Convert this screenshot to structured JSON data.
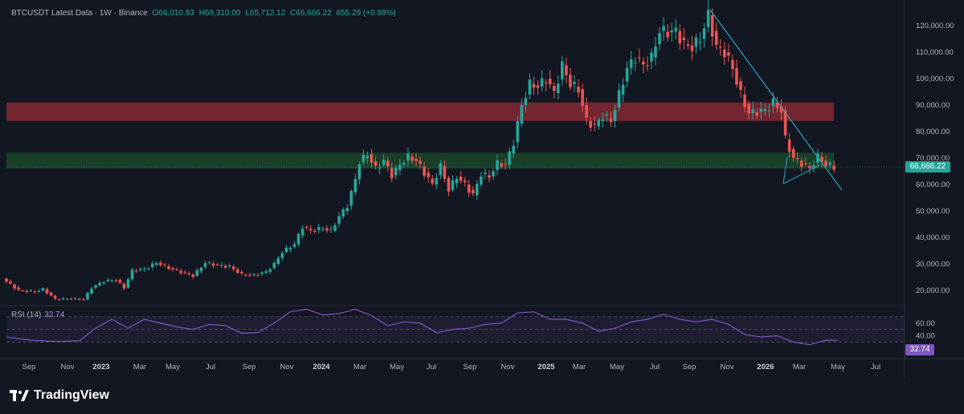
{
  "legend": {
    "symbol": "BTCUSDT Latest Data · 1W · Binance",
    "open": "O66,010.93",
    "high": "H69,310.00",
    "low": "L65,712.12",
    "close": "C66,666.22",
    "change": "655.29 (+0.99%)"
  },
  "rsi": {
    "label": "RSI (14)",
    "value": "32.74"
  },
  "price_badge": "66,666.22",
  "rsi_badge": "32.74",
  "brand": {
    "name": "TradingView"
  },
  "colors": {
    "up": "#26a69a",
    "down": "#ef5350",
    "rsi": "#7e57c2",
    "resistance_zone": "#8c2a34",
    "support_zone": "#1d4a2c",
    "trendline": "#26a6c2"
  },
  "chart_data": {
    "type": "candlestick",
    "symbol": "BTCUSDT",
    "interval": "1W",
    "exchange": "Binance",
    "y_axis_ticks": [
      "120,000.00",
      "110,000.00",
      "100,000.00",
      "90,000.00",
      "80,000.00",
      "70,000.00",
      "60,000.00",
      "50,000.00",
      "40,000.00",
      "30,000.00",
      "20,000.00"
    ],
    "y_axis_tick_values": [
      120000,
      110000,
      100000,
      90000,
      80000,
      70000,
      60000,
      50000,
      40000,
      30000,
      20000
    ],
    "x_axis_labels": [
      "Sep",
      "Nov",
      "2023",
      "Mar",
      "May",
      "Jul",
      "Sep",
      "Nov",
      "2024",
      "Mar",
      "May",
      "Jul",
      "Sep",
      "Nov",
      "2025",
      "Mar",
      "May",
      "Jul",
      "Sep",
      "Nov",
      "2026",
      "Mar",
      "May",
      "Jul"
    ],
    "zones": [
      {
        "name": "resistance",
        "from": 84000,
        "to": 91000
      },
      {
        "name": "support",
        "from": 66000,
        "to": 72000
      }
    ],
    "last_price": 66666.22,
    "weekly_closes": [
      {
        "t": 0,
        "v": 24500
      },
      {
        "t": 4,
        "v": 20000
      },
      {
        "t": 8,
        "v": 19500
      },
      {
        "t": 10,
        "v": 20500
      },
      {
        "t": 13,
        "v": 16700
      },
      {
        "t": 17,
        "v": 16900
      },
      {
        "t": 20,
        "v": 16600
      },
      {
        "t": 22,
        "v": 21000
      },
      {
        "t": 25,
        "v": 23500
      },
      {
        "t": 28,
        "v": 24000
      },
      {
        "t": 30,
        "v": 21000
      },
      {
        "t": 32,
        "v": 27500
      },
      {
        "t": 35,
        "v": 28000
      },
      {
        "t": 38,
        "v": 30500
      },
      {
        "t": 41,
        "v": 28500
      },
      {
        "t": 44,
        "v": 27000
      },
      {
        "t": 47,
        "v": 25500
      },
      {
        "t": 50,
        "v": 30500
      },
      {
        "t": 53,
        "v": 29500
      },
      {
        "t": 56,
        "v": 29000
      },
      {
        "t": 59,
        "v": 26000
      },
      {
        "t": 62,
        "v": 25800
      },
      {
        "t": 65,
        "v": 27000
      },
      {
        "t": 67,
        "v": 30000
      },
      {
        "t": 69,
        "v": 34500
      },
      {
        "t": 72,
        "v": 37500
      },
      {
        "t": 74,
        "v": 44000
      },
      {
        "t": 76,
        "v": 42500
      },
      {
        "t": 79,
        "v": 43500
      },
      {
        "t": 81,
        "v": 42500
      },
      {
        "t": 83,
        "v": 48000
      },
      {
        "t": 85,
        "v": 52000
      },
      {
        "t": 87,
        "v": 62000
      },
      {
        "t": 88,
        "v": 68500
      },
      {
        "t": 90,
        "v": 71500
      },
      {
        "t": 92,
        "v": 66000
      },
      {
        "t": 94,
        "v": 69000
      },
      {
        "t": 96,
        "v": 63500
      },
      {
        "t": 98,
        "v": 67500
      },
      {
        "t": 100,
        "v": 70500
      },
      {
        "t": 102,
        "v": 69000
      },
      {
        "t": 104,
        "v": 64500
      },
      {
        "t": 106,
        "v": 60000
      },
      {
        "t": 108,
        "v": 67000
      },
      {
        "t": 110,
        "v": 58000
      },
      {
        "t": 112,
        "v": 63000
      },
      {
        "t": 114,
        "v": 60000
      },
      {
        "t": 116,
        "v": 56000
      },
      {
        "t": 118,
        "v": 64000
      },
      {
        "t": 120,
        "v": 63000
      },
      {
        "t": 122,
        "v": 68000
      },
      {
        "t": 124,
        "v": 67500
      },
      {
        "t": 126,
        "v": 76000
      },
      {
        "t": 128,
        "v": 90000
      },
      {
        "t": 130,
        "v": 98000
      },
      {
        "t": 132,
        "v": 97000
      },
      {
        "t": 134,
        "v": 100000
      },
      {
        "t": 136,
        "v": 94500
      },
      {
        "t": 138,
        "v": 105000
      },
      {
        "t": 140,
        "v": 98000
      },
      {
        "t": 142,
        "v": 96000
      },
      {
        "t": 144,
        "v": 84000
      },
      {
        "t": 146,
        "v": 82000
      },
      {
        "t": 148,
        "v": 86000
      },
      {
        "t": 150,
        "v": 84000
      },
      {
        "t": 152,
        "v": 94000
      },
      {
        "t": 154,
        "v": 104000
      },
      {
        "t": 156,
        "v": 108000
      },
      {
        "t": 158,
        "v": 105000
      },
      {
        "t": 160,
        "v": 108000
      },
      {
        "t": 162,
        "v": 118000
      },
      {
        "t": 164,
        "v": 117500
      },
      {
        "t": 166,
        "v": 118000
      },
      {
        "t": 168,
        "v": 113000
      },
      {
        "t": 170,
        "v": 112000
      },
      {
        "t": 172,
        "v": 115000
      },
      {
        "t": 174,
        "v": 124000
      },
      {
        "t": 176,
        "v": 112000
      },
      {
        "t": 178,
        "v": 110000
      },
      {
        "t": 180,
        "v": 104000
      },
      {
        "t": 182,
        "v": 94000
      },
      {
        "t": 184,
        "v": 87000
      },
      {
        "t": 186,
        "v": 87500
      },
      {
        "t": 188,
        "v": 88000
      },
      {
        "t": 190,
        "v": 91000
      },
      {
        "t": 192,
        "v": 88000
      },
      {
        "t": 193,
        "v": 77000
      },
      {
        "t": 195,
        "v": 70000
      },
      {
        "t": 197,
        "v": 68000
      },
      {
        "t": 199,
        "v": 66000
      },
      {
        "t": 201,
        "v": 70500
      },
      {
        "t": 203,
        "v": 67500
      },
      {
        "t": 205,
        "v": 66666
      }
    ],
    "rsi_axis_ticks": [
      "60.00",
      "40.00"
    ],
    "rsi_axis_tick_values": [
      60,
      40
    ],
    "rsi_bands": [
      30,
      70
    ],
    "rsi_series": [
      {
        "t": 0,
        "v": 38
      },
      {
        "t": 6,
        "v": 33
      },
      {
        "t": 12,
        "v": 31
      },
      {
        "t": 18,
        "v": 32
      },
      {
        "t": 22,
        "v": 52
      },
      {
        "t": 26,
        "v": 66
      },
      {
        "t": 30,
        "v": 52
      },
      {
        "t": 34,
        "v": 66
      },
      {
        "t": 38,
        "v": 60
      },
      {
        "t": 42,
        "v": 54
      },
      {
        "t": 46,
        "v": 50
      },
      {
        "t": 50,
        "v": 58
      },
      {
        "t": 54,
        "v": 56
      },
      {
        "t": 58,
        "v": 44
      },
      {
        "t": 62,
        "v": 45
      },
      {
        "t": 66,
        "v": 60
      },
      {
        "t": 70,
        "v": 78
      },
      {
        "t": 74,
        "v": 82
      },
      {
        "t": 78,
        "v": 73
      },
      {
        "t": 82,
        "v": 75
      },
      {
        "t": 86,
        "v": 82
      },
      {
        "t": 90,
        "v": 72
      },
      {
        "t": 94,
        "v": 56
      },
      {
        "t": 98,
        "v": 62
      },
      {
        "t": 102,
        "v": 60
      },
      {
        "t": 106,
        "v": 45
      },
      {
        "t": 110,
        "v": 50
      },
      {
        "t": 114,
        "v": 52
      },
      {
        "t": 118,
        "v": 58
      },
      {
        "t": 122,
        "v": 60
      },
      {
        "t": 126,
        "v": 76
      },
      {
        "t": 130,
        "v": 78
      },
      {
        "t": 134,
        "v": 66
      },
      {
        "t": 138,
        "v": 66
      },
      {
        "t": 142,
        "v": 60
      },
      {
        "t": 146,
        "v": 47
      },
      {
        "t": 150,
        "v": 52
      },
      {
        "t": 154,
        "v": 62
      },
      {
        "t": 158,
        "v": 66
      },
      {
        "t": 162,
        "v": 74
      },
      {
        "t": 166,
        "v": 66
      },
      {
        "t": 170,
        "v": 62
      },
      {
        "t": 174,
        "v": 66
      },
      {
        "t": 178,
        "v": 58
      },
      {
        "t": 182,
        "v": 42
      },
      {
        "t": 186,
        "v": 38
      },
      {
        "t": 190,
        "v": 40
      },
      {
        "t": 194,
        "v": 30
      },
      {
        "t": 198,
        "v": 26
      },
      {
        "t": 202,
        "v": 33
      },
      {
        "t": 205,
        "v": 32.74
      }
    ]
  }
}
